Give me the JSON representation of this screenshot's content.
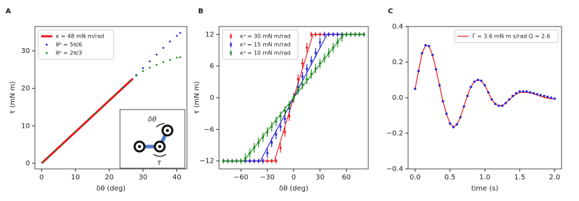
{
  "chart_data": [
    {
      "type": "scatter",
      "panel_label": "A",
      "xlabel": "δθ (deg)",
      "ylabel": "τ (mN m)",
      "xlim": [
        -2,
        43
      ],
      "ylim": [
        -1.5,
        36.5
      ],
      "xticks": [
        0,
        10,
        20,
        30,
        40
      ],
      "yticks": [
        0,
        10,
        20,
        30
      ],
      "legend": "upper left",
      "annotations": [
        "δθ",
        "τ"
      ],
      "series": [
        {
          "name": "κ = 48 mN m/rad",
          "color": "#e8141b",
          "kind": "line",
          "x": [
            0,
            27
          ],
          "values": [
            0,
            22.6
          ]
        },
        {
          "name": "θ⁰ = 5π/6",
          "color": "#2222d6",
          "kind": "scatter",
          "x": [
            0.5,
            2,
            4,
            6,
            8,
            10,
            12,
            14,
            16,
            18,
            20,
            22,
            24,
            26,
            28,
            30,
            32,
            34,
            36,
            38,
            40,
            41
          ],
          "values": [
            0.4,
            1.7,
            3.4,
            5,
            6.7,
            8.4,
            10.1,
            11.8,
            13.4,
            15.1,
            16.8,
            18.5,
            20.2,
            21.9,
            23.6,
            25.4,
            27.2,
            29,
            30.8,
            32.5,
            34,
            34.8
          ]
        },
        {
          "name": "θ⁰ = 2π/3",
          "color": "#1a8a1a",
          "kind": "scatter",
          "x": [
            0.5,
            2,
            4,
            6,
            8,
            10,
            12,
            14,
            16,
            18,
            20,
            22,
            24,
            26,
            28,
            30,
            32,
            34,
            36,
            38,
            40,
            41
          ],
          "values": [
            0.4,
            1.7,
            3.4,
            5,
            6.7,
            8.4,
            10.1,
            11.8,
            13.4,
            15.1,
            16.8,
            18.5,
            20.2,
            21.9,
            23.4,
            24.6,
            25.5,
            26.3,
            27,
            27.6,
            28.2,
            28.3
          ]
        }
      ]
    },
    {
      "type": "errorbar",
      "panel_label": "B",
      "xlabel": "δθ (deg)",
      "ylabel": "τ (mN m)",
      "xlim": [
        -85,
        85
      ],
      "ylim": [
        -13.5,
        13.5
      ],
      "xticks": [
        {
          "value": -60,
          "label": "−60"
        },
        {
          "value": -30,
          "label": "−30"
        },
        0,
        30,
        60
      ],
      "yticks": [
        {
          "value": -12,
          "label": "−12"
        },
        {
          "value": -6,
          "label": "−6"
        },
        0,
        6,
        12
      ],
      "legend": "upper left",
      "x": [
        -80,
        -75,
        -70,
        -65,
        -60,
        -55,
        -50,
        -45,
        -40,
        -35,
        -30,
        -25,
        -20,
        -15,
        -10,
        -5,
        0,
        5,
        10,
        15,
        20,
        25,
        30,
        35,
        40,
        45,
        50,
        55,
        60,
        65,
        70,
        75,
        80
      ],
      "series": [
        {
          "name": "κᵅ = 30 mN m/rad",
          "color": "#e8141b",
          "values": [
            -12,
            -12,
            -12,
            -12,
            -12,
            -12,
            -12,
            -12,
            -12,
            -12,
            -12,
            -12,
            -12,
            -9.5,
            -6.5,
            -3.5,
            0,
            3.5,
            6.5,
            9.5,
            12,
            12,
            12,
            12,
            12,
            12,
            12,
            12,
            12,
            12,
            12,
            12,
            12
          ],
          "errors": [
            0.4,
            0.4,
            0.4,
            0.4,
            0.4,
            0.4,
            0.4,
            0.4,
            0.4,
            0.4,
            0.4,
            0.4,
            0.5,
            0.9,
            0.9,
            0.9,
            0.9,
            0.9,
            0.9,
            0.9,
            0.5,
            0.4,
            0.4,
            0.4,
            0.4,
            0.4,
            0.4,
            0.4,
            0.4,
            0.4,
            0.4,
            0.4,
            0.4
          ],
          "fit": {
            "x": [
              -80,
              -22,
              22,
              80
            ],
            "values": [
              -12,
              -12,
              12,
              12
            ]
          }
        },
        {
          "name": "κᵅ = 15 mN m/rad",
          "color": "#2222d6",
          "values": [
            -12,
            -12,
            -12,
            -12,
            -12,
            -12,
            -12,
            -12,
            -12,
            -12,
            -10.5,
            -8.5,
            -7,
            -5.5,
            -4,
            -2,
            0,
            2,
            4,
            5.5,
            7,
            8.5,
            10.5,
            12,
            12,
            12,
            12,
            12,
            12,
            12,
            12,
            12,
            12
          ],
          "errors": [
            0.4,
            0.4,
            0.4,
            0.4,
            0.4,
            0.4,
            0.4,
            0.4,
            0.4,
            0.5,
            0.9,
            0.9,
            0.9,
            0.9,
            0.9,
            0.9,
            0.9,
            0.9,
            0.9,
            0.9,
            0.9,
            0.9,
            0.9,
            0.5,
            0.4,
            0.4,
            0.4,
            0.4,
            0.4,
            0.4,
            0.4,
            0.4,
            0.4
          ],
          "fit": {
            "x": [
              -80,
              -38,
              38,
              80
            ],
            "values": [
              -12,
              -12,
              12,
              12
            ]
          }
        },
        {
          "name": "κᵅ = 10 mN m/rad",
          "color": "#1a8a1a",
          "values": [
            -12,
            -12,
            -12,
            -12,
            -12,
            -11.5,
            -10.5,
            -9.5,
            -8.5,
            -7.5,
            -6.5,
            -5.5,
            -4.5,
            -3.5,
            -2.5,
            -1.5,
            0,
            1.5,
            2.5,
            3.5,
            4.5,
            5.5,
            6.5,
            7.5,
            8.5,
            9.5,
            10.5,
            11.5,
            12,
            12,
            12,
            12,
            12
          ],
          "errors": [
            0.4,
            0.4,
            0.4,
            0.4,
            0.5,
            0.9,
            0.9,
            0.9,
            0.9,
            0.9,
            0.9,
            0.9,
            0.9,
            0.9,
            0.9,
            0.9,
            0.9,
            0.9,
            0.9,
            0.9,
            0.9,
            0.9,
            0.9,
            0.9,
            0.9,
            0.9,
            0.9,
            0.9,
            0.5,
            0.4,
            0.4,
            0.4,
            0.4
          ],
          "fit": {
            "x": [
              -80,
              -57,
              57,
              80
            ],
            "values": [
              -12,
              -12,
              12,
              12
            ]
          }
        }
      ]
    },
    {
      "type": "line",
      "panel_label": "C",
      "xlabel": "time (s)",
      "xlim": [
        -0.1,
        2.1
      ],
      "ylim": [
        -0.4,
        0.4
      ],
      "xticks": [
        {
          "value": 0,
          "label": "0.0"
        },
        0.5,
        {
          "value": 1,
          "label": "1.0"
        },
        1.5,
        {
          "value": 2,
          "label": "2.0"
        }
      ],
      "yticks": [
        {
          "value": -0.4,
          "label": "−0.4"
        },
        {
          "value": -0.2,
          "label": "−0.2"
        },
        {
          "value": 0,
          "label": "0.0"
        },
        0.2,
        0.4
      ],
      "legend": "upper right",
      "series": [
        {
          "name": "Γ = 3.6 mN m s/rad   Q = 2.6",
          "color": "#e8141b",
          "kind": "line",
          "x": [
            0,
            0.05,
            0.1,
            0.15,
            0.2,
            0.25,
            0.3,
            0.35,
            0.4,
            0.45,
            0.5,
            0.55,
            0.6,
            0.65,
            0.7,
            0.75,
            0.8,
            0.85,
            0.9,
            0.95,
            1.0,
            1.05,
            1.1,
            1.15,
            1.2,
            1.25,
            1.3,
            1.35,
            1.4,
            1.45,
            1.5,
            1.55,
            1.6,
            1.65,
            1.7,
            1.75,
            1.8,
            1.85,
            1.9,
            1.95,
            2.0
          ],
          "values": [
            0.05,
            0.15,
            0.25,
            0.295,
            0.29,
            0.24,
            0.16,
            0.07,
            -0.02,
            -0.09,
            -0.145,
            -0.165,
            -0.15,
            -0.11,
            -0.05,
            0.01,
            0.06,
            0.09,
            0.1,
            0.095,
            0.07,
            0.03,
            -0.01,
            -0.035,
            -0.045,
            -0.045,
            -0.03,
            -0.01,
            0.005,
            0.02,
            0.03,
            0.03,
            0.03,
            0.028,
            0.022,
            0.015,
            0.008,
            0.002,
            -0.003,
            -0.006,
            -0.008
          ]
        },
        {
          "color": "#2222d6",
          "kind": "scatter",
          "x": [
            0,
            0.05,
            0.1,
            0.15,
            0.2,
            0.25,
            0.3,
            0.35,
            0.4,
            0.45,
            0.5,
            0.55,
            0.6,
            0.65,
            0.7,
            0.75,
            0.8,
            0.85,
            0.9,
            0.95,
            1.0,
            1.05,
            1.1,
            1.15,
            1.2,
            1.25,
            1.3,
            1.35,
            1.4,
            1.45,
            1.5,
            1.55,
            1.6,
            1.65,
            1.7,
            1.75,
            1.8,
            1.85,
            1.9,
            1.95,
            2.0
          ],
          "values": [
            0.05,
            0.15,
            0.25,
            0.295,
            0.29,
            0.24,
            0.16,
            0.07,
            -0.02,
            -0.09,
            -0.145,
            -0.165,
            -0.15,
            -0.11,
            -0.05,
            0.01,
            0.06,
            0.09,
            0.1,
            0.095,
            0.07,
            0.03,
            -0.01,
            -0.035,
            -0.045,
            -0.045,
            -0.03,
            -0.01,
            0.01,
            0.025,
            0.035,
            0.035,
            0.035,
            0.03,
            0.025,
            0.02,
            0.015,
            0.01,
            0.005,
            0,
            -0.005
          ]
        }
      ]
    }
  ]
}
